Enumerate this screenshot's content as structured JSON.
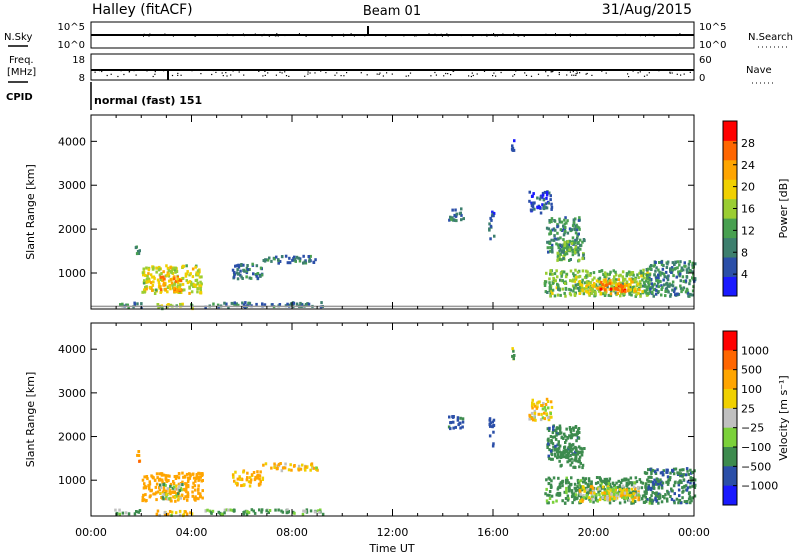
{
  "header": {
    "site": "Halley (fitACF)",
    "beam": "Beam 01",
    "date": "31/Aug/2015"
  },
  "strips": {
    "nsky_label": "N.Sky",
    "nsky_ticks": [
      "10^5",
      "10^0"
    ],
    "nsearch_label": "N.Search",
    "nsearch_ticks": [
      "10^5",
      "10^0"
    ],
    "freq_label": "Freq.",
    "freq_unit": "[MHz]",
    "freq_ticks": [
      "18",
      "8"
    ],
    "nave_label": "Nave",
    "nave_ticks": [
      "60",
      "0"
    ],
    "cpid_label": "CPID",
    "cpid_value": "normal (fast) 151"
  },
  "power_colorbar": {
    "label": "Power [dB]",
    "ticks": [
      "28",
      "24",
      "20",
      "16",
      "12",
      "8",
      "4"
    ],
    "colors": [
      "#1a1aff",
      "#2b4fa8",
      "#3d7f6e",
      "#48a050",
      "#9acd32",
      "#f0d000",
      "#ffa500",
      "#ff6600",
      "#ff0000"
    ]
  },
  "velocity_colorbar": {
    "label": "Velocity [m s⁻¹]",
    "ticks": [
      "1000",
      "500",
      "100",
      "25",
      "−25",
      "−100",
      "−500",
      "−1000"
    ],
    "colors": [
      "#ff0000",
      "#ff6600",
      "#ffa500",
      "#f0d000",
      "#c0c0c0",
      "#7bd13a",
      "#3d8b4e",
      "#2b4fa8",
      "#1a1aff"
    ]
  },
  "chart_data": [
    {
      "type": "heatmap",
      "title": "Power",
      "ylabel": "Slant Range [km]",
      "xlabel": "",
      "x_ticks": [
        "00:00",
        "04:00",
        "08:00",
        "12:00",
        "16:00",
        "20:00",
        "00:00"
      ],
      "y_ticks": [
        "4000",
        "3000",
        "2000",
        "1000"
      ],
      "xlim_hours": [
        0,
        24
      ],
      "ylim_km": [
        180,
        4600
      ],
      "colorbar_label": "Power [dB]",
      "patches": [
        {
          "t0": 0.9,
          "t1": 2.0,
          "r0": 250,
          "r1": 350,
          "value": 8
        },
        {
          "t0": 1.7,
          "t1": 1.9,
          "r0": 1450,
          "r1": 1700,
          "value": 8
        },
        {
          "t0": 2.0,
          "t1": 4.4,
          "r0": 550,
          "r1": 1200,
          "value": 18
        },
        {
          "t0": 2.7,
          "t1": 3.6,
          "r0": 600,
          "r1": 950,
          "value": 24
        },
        {
          "t0": 2.5,
          "t1": 4.0,
          "r0": 220,
          "r1": 330,
          "value": 16
        },
        {
          "t0": 4.5,
          "t1": 9.2,
          "r0": 250,
          "r1": 360,
          "value": 8
        },
        {
          "t0": 5.6,
          "t1": 6.8,
          "r0": 900,
          "r1": 1250,
          "value": 8
        },
        {
          "t0": 6.8,
          "t1": 9.0,
          "r0": 1250,
          "r1": 1420,
          "value": 8
        },
        {
          "t0": 14.2,
          "t1": 14.8,
          "r0": 2200,
          "r1": 2500,
          "value": 8
        },
        {
          "t0": 15.8,
          "t1": 16.0,
          "r0": 1800,
          "r1": 2450,
          "value": 6
        },
        {
          "t0": 16.7,
          "t1": 16.8,
          "r0": 3800,
          "r1": 4050,
          "value": 4
        },
        {
          "t0": 17.4,
          "t1": 18.3,
          "r0": 2400,
          "r1": 2900,
          "value": 5
        },
        {
          "t0": 18.1,
          "t1": 19.4,
          "r0": 1500,
          "r1": 2300,
          "value": 10
        },
        {
          "t0": 18.5,
          "t1": 19.6,
          "r0": 1300,
          "r1": 1800,
          "value": 12
        },
        {
          "t0": 18.0,
          "t1": 22.2,
          "r0": 500,
          "r1": 1100,
          "value": 14
        },
        {
          "t0": 19.4,
          "t1": 21.8,
          "r0": 550,
          "r1": 900,
          "value": 20
        },
        {
          "t0": 20.2,
          "t1": 21.3,
          "r0": 600,
          "r1": 820,
          "value": 27
        },
        {
          "t0": 22.0,
          "t1": 24.0,
          "r0": 500,
          "r1": 1300,
          "value": 10
        }
      ]
    },
    {
      "type": "heatmap",
      "title": "Velocity",
      "ylabel": "Slant Range [km]",
      "xlabel": "Time UT",
      "x_ticks": [
        "00:00",
        "04:00",
        "08:00",
        "12:00",
        "16:00",
        "20:00",
        "00:00"
      ],
      "y_ticks": [
        "4000",
        "3000",
        "2000",
        "1000"
      ],
      "xlim_hours": [
        0,
        24
      ],
      "ylim_km": [
        180,
        4600
      ],
      "colorbar_label": "Velocity [m s⁻¹]",
      "patches": [
        {
          "t0": 0.9,
          "t1": 2.0,
          "r0": 250,
          "r1": 350,
          "value": -100
        },
        {
          "t0": 1.7,
          "t1": 1.9,
          "r0": 1450,
          "r1": 1700,
          "value": 500
        },
        {
          "t0": 2.0,
          "t1": 4.4,
          "r0": 550,
          "r1": 1200,
          "value": 300
        },
        {
          "t0": 2.7,
          "t1": 3.6,
          "r0": 600,
          "r1": 950,
          "value": -50
        },
        {
          "t0": 2.5,
          "t1": 4.0,
          "r0": 220,
          "r1": 330,
          "value": 80
        },
        {
          "t0": 4.5,
          "t1": 9.2,
          "r0": 250,
          "r1": 360,
          "value": -120
        },
        {
          "t0": 5.6,
          "t1": 6.8,
          "r0": 900,
          "r1": 1250,
          "value": 150
        },
        {
          "t0": 6.8,
          "t1": 9.0,
          "r0": 1250,
          "r1": 1420,
          "value": 90
        },
        {
          "t0": 14.2,
          "t1": 14.8,
          "r0": 2200,
          "r1": 2500,
          "value": -600
        },
        {
          "t0": 15.8,
          "t1": 16.0,
          "r0": 1800,
          "r1": 2450,
          "value": -700
        },
        {
          "t0": 16.7,
          "t1": 16.8,
          "r0": 3800,
          "r1": 4050,
          "value": -80
        },
        {
          "t0": 17.4,
          "t1": 18.3,
          "r0": 2400,
          "r1": 2900,
          "value": 60
        },
        {
          "t0": 18.1,
          "t1": 19.4,
          "r0": 1500,
          "r1": 2300,
          "value": -400
        },
        {
          "t0": 18.5,
          "t1": 19.6,
          "r0": 1300,
          "r1": 1800,
          "value": -300
        },
        {
          "t0": 18.0,
          "t1": 22.2,
          "r0": 500,
          "r1": 1100,
          "value": -200
        },
        {
          "t0": 19.4,
          "t1": 21.8,
          "r0": 550,
          "r1": 900,
          "value": 40
        },
        {
          "t0": 20.2,
          "t1": 21.3,
          "r0": 600,
          "r1": 820,
          "value": 0
        },
        {
          "t0": 22.0,
          "t1": 24.0,
          "r0": 500,
          "r1": 1300,
          "value": -450
        }
      ]
    }
  ]
}
